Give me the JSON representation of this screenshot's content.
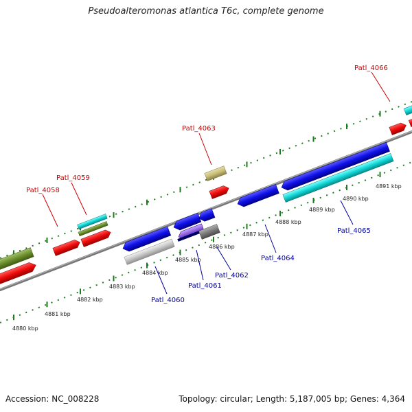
{
  "title": "Pseudoalteromonas atlantica T6c, complete genome",
  "footer": {
    "accession": "Accession: NC_008228",
    "summary": "Topology: circular; Length: 5,187,005 bp; Genes: 4,364"
  },
  "colors": {
    "forward_label": "#cc0000",
    "reverse_label": "#000099",
    "tick_green": "#1e7a1e",
    "backbone": "#7a7a7a"
  },
  "forward_labels": [
    "Patl_4058",
    "Patl_4059",
    "Patl_4063",
    "Patl_4066"
  ],
  "reverse_labels": [
    "Patl_4060",
    "Patl_4061",
    "Patl_4062",
    "Patl_4064",
    "Patl_4065"
  ],
  "scale_labels": [
    "4880 kbp",
    "4881 kbp",
    "4882 kbp",
    "4883 kbp",
    "4884 kbp",
    "4885 kbp",
    "4886 kbp",
    "4887 kbp",
    "4888 kbp",
    "4889 kbp",
    "4890 kbp",
    "4891 kbp"
  ]
}
